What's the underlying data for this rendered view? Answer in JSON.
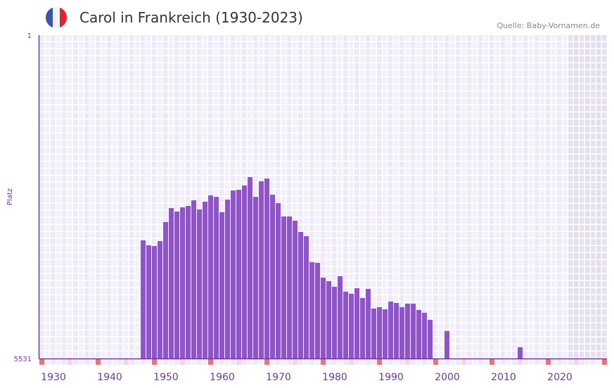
{
  "header": {
    "title": "Carol in Frankreich (1930-2023)",
    "source": "Quelle: Baby-Vornamen.de",
    "flag_colors": [
      "#3a56a8",
      "#f2f2f2",
      "#e8202a"
    ]
  },
  "chart_data": {
    "type": "bar",
    "title": "Carol in Frankreich (1930-2023)",
    "xlabel": "",
    "ylabel": "Platz",
    "y_axis_inverted": true,
    "ylim": [
      1,
      5531
    ],
    "y_ticks": [
      "1",
      "5531"
    ],
    "x_range": [
      1928,
      2028
    ],
    "x_ticks": [
      1930,
      1940,
      1950,
      1960,
      1970,
      1980,
      1990,
      2000,
      2010,
      2020
    ],
    "shaded_from_year": 2022,
    "grid": true,
    "bar_color": "#8e55c6",
    "x": [
      1946,
      1947,
      1948,
      1949,
      1950,
      1951,
      1952,
      1953,
      1954,
      1955,
      1956,
      1957,
      1958,
      1959,
      1960,
      1961,
      1962,
      1963,
      1964,
      1965,
      1966,
      1967,
      1968,
      1969,
      1970,
      1971,
      1972,
      1973,
      1974,
      1975,
      1976,
      1977,
      1978,
      1979,
      1980,
      1981,
      1982,
      1983,
      1984,
      1985,
      1986,
      1987,
      1988,
      1989,
      1990,
      1991,
      1992,
      1993,
      1994,
      1995,
      1996,
      1997,
      2000,
      2013
    ],
    "values": [
      3511,
      3595,
      3607,
      3523,
      3198,
      2958,
      3018,
      2946,
      2922,
      2826,
      2982,
      2850,
      2742,
      2766,
      3030,
      2814,
      2658,
      2646,
      2573,
      2429,
      2766,
      2501,
      2453,
      2730,
      2874,
      3102,
      3102,
      3174,
      3367,
      3439,
      3883,
      3895,
      4148,
      4208,
      4304,
      4124,
      4388,
      4424,
      4328,
      4496,
      4340,
      4677,
      4653,
      4689,
      4557,
      4581,
      4653,
      4593,
      4593,
      4701,
      4749,
      4869,
      5061,
      5338
    ]
  }
}
